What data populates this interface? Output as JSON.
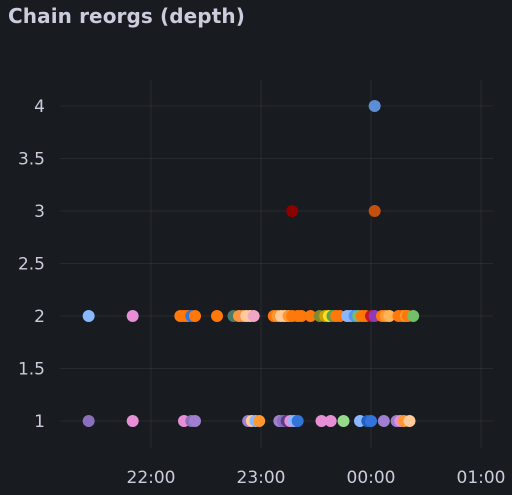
{
  "panel": {
    "title": "Chain reorgs (depth)"
  },
  "chart_data": {
    "type": "scatter",
    "title": "Chain reorgs (depth)",
    "xlabel": "",
    "ylabel": "",
    "x_ticks": [
      "22:00",
      "23:00",
      "00:00",
      "01:00"
    ],
    "y_ticks": [
      "1",
      "1.5",
      "2",
      "2.5",
      "3",
      "3.5",
      "4"
    ],
    "ylim": [
      0.8,
      4.2
    ],
    "xlim": [
      "21:10",
      "01:06"
    ],
    "grid": true,
    "legend": "none",
    "points": [
      {
        "x": "21:26",
        "y": 2,
        "color": "#8ab8ff"
      },
      {
        "x": "21:50",
        "y": 2,
        "color": "#e68ed6"
      },
      {
        "x": "22:16",
        "y": 2,
        "color": "#ff780a"
      },
      {
        "x": "22:18",
        "y": 2,
        "color": "#ff780a"
      },
      {
        "x": "22:20",
        "y": 2,
        "color": "#ff780a"
      },
      {
        "x": "22:22",
        "y": 2,
        "color": "#3274d9"
      },
      {
        "x": "22:24",
        "y": 2,
        "color": "#ff780a"
      },
      {
        "x": "22:36",
        "y": 2,
        "color": "#ff780a"
      },
      {
        "x": "22:45",
        "y": 2,
        "color": "#4b7a6b"
      },
      {
        "x": "22:48",
        "y": 2,
        "color": "#ff9830"
      },
      {
        "x": "22:50",
        "y": 2,
        "color": "#f9934e"
      },
      {
        "x": "22:52",
        "y": 2,
        "color": "#ffcb9a"
      },
      {
        "x": "22:54",
        "y": 2,
        "color": "#ffcb9a"
      },
      {
        "x": "22:56",
        "y": 2,
        "color": "#f2a6c7"
      },
      {
        "x": "23:07",
        "y": 2,
        "color": "#ff780a"
      },
      {
        "x": "23:09",
        "y": 2,
        "color": "#ff9830"
      },
      {
        "x": "23:11",
        "y": 2,
        "color": "#ffcb9a"
      },
      {
        "x": "23:13",
        "y": 2,
        "color": "#ffcb9a"
      },
      {
        "x": "23:15",
        "y": 2,
        "color": "#ff9830"
      },
      {
        "x": "23:17",
        "y": 2,
        "color": "#ff780a"
      },
      {
        "x": "23:20",
        "y": 2,
        "color": "#ff780a"
      },
      {
        "x": "23:22",
        "y": 2,
        "color": "#ff780a"
      },
      {
        "x": "23:27",
        "y": 2,
        "color": "#ff780a"
      },
      {
        "x": "23:32",
        "y": 2,
        "color": "#808b2f"
      },
      {
        "x": "23:35",
        "y": 2,
        "color": "#cca300"
      },
      {
        "x": "23:37",
        "y": 2,
        "color": "#fade2a"
      },
      {
        "x": "23:39",
        "y": 2,
        "color": "#56a64b"
      },
      {
        "x": "23:41",
        "y": 2,
        "color": "#ff780a"
      },
      {
        "x": "23:43",
        "y": 2,
        "color": "#ff780a"
      },
      {
        "x": "23:47",
        "y": 2,
        "color": "#8ab8ff"
      },
      {
        "x": "23:49",
        "y": 2,
        "color": "#8ab8ff"
      },
      {
        "x": "23:51",
        "y": 2,
        "color": "#5794f2"
      },
      {
        "x": "23:53",
        "y": 2,
        "color": "#73bf69"
      },
      {
        "x": "23:55",
        "y": 2,
        "color": "#ff780a"
      },
      {
        "x": "23:57",
        "y": 2,
        "color": "#ff780a"
      },
      {
        "x": "00:00",
        "y": 2,
        "color": "#c4162a"
      },
      {
        "x": "00:02",
        "y": 2,
        "color": "#8f3bb8"
      },
      {
        "x": "00:06",
        "y": 2,
        "color": "#ff780a"
      },
      {
        "x": "00:08",
        "y": 2,
        "color": "#ff9830"
      },
      {
        "x": "00:10",
        "y": 2,
        "color": "#ffb357"
      },
      {
        "x": "00:15",
        "y": 2,
        "color": "#ff780a"
      },
      {
        "x": "00:17",
        "y": 2,
        "color": "#ff780a"
      },
      {
        "x": "00:19",
        "y": 2,
        "color": "#ff9830"
      },
      {
        "x": "00:20",
        "y": 2,
        "color": "#ff780a"
      },
      {
        "x": "00:23",
        "y": 2,
        "color": "#73bf69"
      },
      {
        "x": "21:26",
        "y": 1,
        "color": "#8a6fbd"
      },
      {
        "x": "21:50",
        "y": 1,
        "color": "#e68ed6"
      },
      {
        "x": "22:18",
        "y": 1,
        "color": "#e68ed6"
      },
      {
        "x": "22:22",
        "y": 1,
        "color": "#8a6fbd"
      },
      {
        "x": "22:24",
        "y": 1,
        "color": "#a07fd0"
      },
      {
        "x": "22:53",
        "y": 1,
        "color": "#a07fd0"
      },
      {
        "x": "22:55",
        "y": 1,
        "color": "#ffcb9a"
      },
      {
        "x": "22:57",
        "y": 1,
        "color": "#8ab8ff"
      },
      {
        "x": "22:59",
        "y": 1,
        "color": "#ff9830"
      },
      {
        "x": "23:10",
        "y": 1,
        "color": "#a07fd0"
      },
      {
        "x": "23:12",
        "y": 1,
        "color": "#8a6fbd"
      },
      {
        "x": "23:14",
        "y": 1,
        "color": "#5a3d8a"
      },
      {
        "x": "23:16",
        "y": 1,
        "color": "#e68ed6"
      },
      {
        "x": "23:18",
        "y": 1,
        "color": "#8ab8ff"
      },
      {
        "x": "23:20",
        "y": 1,
        "color": "#3274d9"
      },
      {
        "x": "23:33",
        "y": 1,
        "color": "#e68ed6"
      },
      {
        "x": "23:38",
        "y": 1,
        "color": "#e68ed6"
      },
      {
        "x": "23:45",
        "y": 1,
        "color": "#96d98d"
      },
      {
        "x": "23:54",
        "y": 1,
        "color": "#8ab8ff"
      },
      {
        "x": "23:58",
        "y": 1,
        "color": "#1f60c4"
      },
      {
        "x": "00:00",
        "y": 1,
        "color": "#3274d9"
      },
      {
        "x": "00:07",
        "y": 1,
        "color": "#a07fd0"
      },
      {
        "x": "00:14",
        "y": 1,
        "color": "#a07fd0"
      },
      {
        "x": "00:16",
        "y": 1,
        "color": "#e68ed6"
      },
      {
        "x": "00:18",
        "y": 1,
        "color": "#ff9830"
      },
      {
        "x": "00:21",
        "y": 1,
        "color": "#ffcb9a"
      },
      {
        "x": "23:17",
        "y": 3,
        "color": "#8e0000"
      },
      {
        "x": "00:02",
        "y": 3,
        "color": "#c4500f"
      },
      {
        "x": "00:02",
        "y": 4,
        "color": "#5b8ed4"
      }
    ]
  }
}
